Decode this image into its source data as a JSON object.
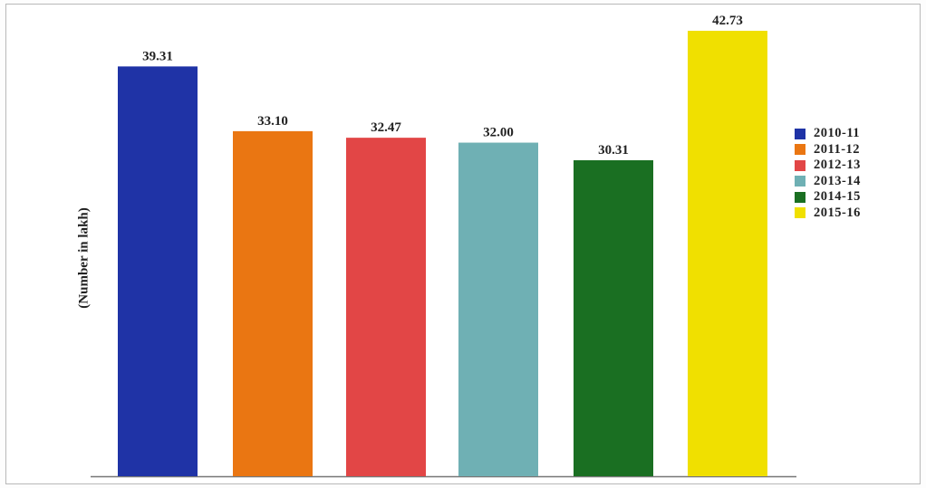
{
  "chart_data": {
    "type": "bar",
    "categories": [
      "2010-11",
      "2011-12",
      "2012-13",
      "2013-14",
      "2014-15",
      "2015-16"
    ],
    "values": [
      39.31,
      33.1,
      32.47,
      32.0,
      30.31,
      42.73
    ],
    "value_labels": [
      "39.31",
      "33.10",
      "32.47",
      "32.00",
      "30.31",
      "42.73"
    ],
    "colors": [
      "#1f33a6",
      "#ea7612",
      "#e24646",
      "#6fb0b4",
      "#1a6f22",
      "#f0e000"
    ],
    "title": "",
    "xlabel": "",
    "ylabel": "(Number in lakh)",
    "ylim": [
      0,
      46
    ],
    "grid": false,
    "legend": {
      "position": "right",
      "entries": [
        "2010-11",
        "2011-12",
        "2012-13",
        "2013-14",
        "2014-15",
        "2015-16"
      ]
    }
  }
}
